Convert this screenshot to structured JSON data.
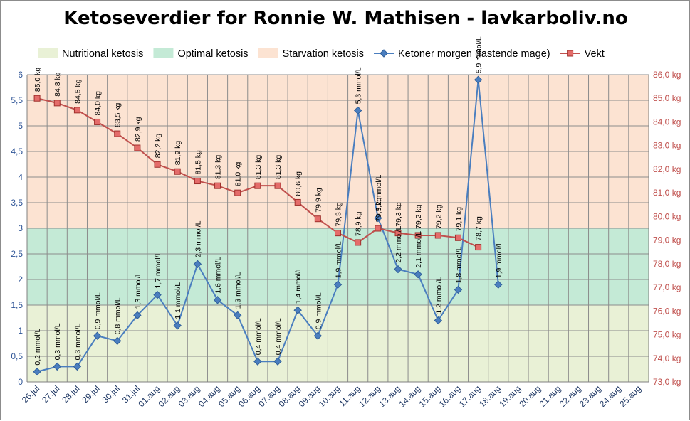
{
  "chart_data": {
    "type": "line",
    "title": "Ketoseverdier for Ronnie W. Mathisen - lavkarboliv.no",
    "categories": [
      "26.jul",
      "27.jul",
      "28.jul",
      "29.jul",
      "30.jul",
      "31.jul",
      "01.aug",
      "02.aug",
      "03.aug",
      "04.aug",
      "05.aug",
      "06.aug",
      "07.aug",
      "08.aug",
      "09.aug",
      "10.aug",
      "11.aug",
      "12.aug",
      "13.aug",
      "14.aug",
      "15.aug",
      "16.aug",
      "17.aug",
      "18.aug",
      "19.aug",
      "20.aug",
      "21.aug",
      "22.aug",
      "23.aug",
      "24.aug",
      "25.aug"
    ],
    "bands": [
      {
        "name": "Nutritional ketosis",
        "from": 0,
        "to": 1.5,
        "color": "#e9f1d6"
      },
      {
        "name": "Optimal ketosis",
        "from": 1.5,
        "to": 3,
        "color": "#c4ead6"
      },
      {
        "name": "Starvation ketosis",
        "from": 3,
        "to": 6,
        "color": "#fce3d2"
      }
    ],
    "series": [
      {
        "name": "Ketoner morgen (fastende mage)",
        "axis": "left",
        "color": "#4a7ebf",
        "values": [
          0.2,
          0.3,
          0.3,
          0.9,
          0.8,
          1.3,
          1.7,
          1.1,
          2.3,
          1.6,
          1.3,
          0.4,
          0.4,
          1.4,
          0.9,
          1.9,
          5.3,
          3.2,
          2.2,
          2.1,
          1.2,
          1.8,
          5.9,
          1.9,
          null,
          null,
          null,
          null,
          null,
          null,
          null
        ],
        "labels": [
          "0,2 mmol/L",
          "0,3 mmol/L",
          "0,3 mmol/L",
          "0,9 mmol/L",
          "0,8 mmol/L",
          "1,3 mmol/L",
          "1,7 mmol/L",
          "1,1 mmol/L",
          "2,3 mmol/L",
          "1,6 mmol/L",
          "1,3 mmol/L",
          "0,4 mmol/L",
          "0,4 mmol/L",
          "1,4 mmol/L",
          "0,9 mmol/L",
          "1,9 mmol/L",
          "5,3 mmol/L",
          "3,2 mmol/L",
          "2,2 mmol/L",
          "2,1 mmol/L",
          "1,2 mmol/L",
          "1,8 mmol/L",
          "5,9 mmol/L",
          "1,9 mmol/L",
          null,
          null,
          null,
          null,
          null,
          null,
          null
        ]
      },
      {
        "name": "Vekt",
        "axis": "right",
        "color": "#c0504d",
        "values": [
          85.0,
          84.8,
          84.5,
          84.0,
          83.5,
          82.9,
          82.2,
          81.9,
          81.5,
          81.3,
          81.0,
          81.3,
          81.3,
          80.6,
          79.9,
          79.3,
          78.9,
          79.5,
          79.3,
          79.2,
          79.2,
          79.1,
          78.7,
          null,
          null,
          null,
          null,
          null,
          null,
          null,
          null
        ],
        "labels": [
          "85,0 kg",
          "84,8 kg",
          "84,5 kg",
          "84,0 kg",
          "83,5 kg",
          "82,9 kg",
          "82,2 kg",
          "81,9 kg",
          "81,5 kg",
          "81,3 kg",
          "81,0 kg",
          "81,3 kg",
          "81,3 kg",
          "80,6 kg",
          "79,9 kg",
          "79,3 kg",
          "78,9 kg",
          "79,5 kg",
          "79,3 kg",
          "79,2 kg",
          "79,2 kg",
          "79,1 kg",
          "78,7 kg",
          null,
          null,
          null,
          null,
          null,
          null,
          null,
          null
        ]
      }
    ],
    "y_left": {
      "min": 0,
      "max": 6,
      "ticks": [
        "0",
        "0,5",
        "1",
        "1,5",
        "2",
        "2,5",
        "3",
        "3,5",
        "4",
        "4,5",
        "5",
        "5,5",
        "6"
      ]
    },
    "y_right": {
      "min": 73,
      "max": 86,
      "ticks": [
        "73,0 kg",
        "74,0 kg",
        "75,0 kg",
        "76,0 kg",
        "77,0 kg",
        "78,0 kg",
        "79,0 kg",
        "80,0 kg",
        "81,0 kg",
        "82,0 kg",
        "83,0 kg",
        "84,0 kg",
        "85,0 kg",
        "86,0 kg"
      ]
    },
    "grid": true,
    "legend_position": "top"
  }
}
